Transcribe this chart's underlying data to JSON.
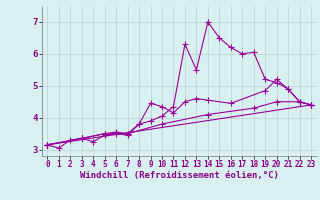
{
  "background_color": "#d8f0f0",
  "grid_color": "#b8d0d0",
  "line_color": "#990099",
  "marker": "+",
  "markersize": 4,
  "linewidth": 0.8,
  "xlabel": "Windchill (Refroidissement éolien,°C)",
  "xlabel_fontsize": 6.5,
  "tick_fontsize": 6,
  "xlim": [
    -0.5,
    23.5
  ],
  "ylim": [
    2.8,
    7.5
  ],
  "yticks": [
    3,
    4,
    5,
    6,
    7
  ],
  "xticks": [
    0,
    1,
    2,
    3,
    4,
    5,
    6,
    7,
    8,
    9,
    10,
    11,
    12,
    13,
    14,
    15,
    16,
    17,
    18,
    19,
    20,
    21,
    22,
    23
  ],
  "series": [
    [
      0,
      3.15,
      1,
      3.05,
      2,
      3.3,
      3,
      3.35,
      4,
      3.25,
      5,
      3.45,
      6,
      3.5,
      7,
      3.45,
      8,
      3.8,
      9,
      3.9,
      10,
      4.05,
      11,
      4.35,
      12,
      6.3,
      13,
      5.5,
      14,
      7.0,
      15,
      6.5,
      16,
      6.2,
      17,
      6.0,
      18,
      6.05,
      19,
      5.2,
      20,
      5.1,
      21,
      4.9,
      22,
      4.5,
      23,
      4.4
    ],
    [
      0,
      3.15,
      3,
      3.35,
      5,
      3.5,
      6,
      3.55,
      7,
      3.5,
      8,
      3.8,
      9,
      4.45,
      10,
      4.35,
      11,
      4.15,
      12,
      4.5,
      13,
      4.6,
      14,
      4.55,
      16,
      4.45,
      19,
      4.85,
      20,
      5.2,
      21,
      4.9,
      22,
      4.5,
      23,
      4.4
    ],
    [
      0,
      3.15,
      3,
      3.35,
      5,
      3.5,
      7,
      3.5,
      10,
      3.8,
      14,
      4.1,
      18,
      4.3,
      20,
      4.5,
      22,
      4.5,
      23,
      4.4
    ],
    [
      0,
      3.15,
      23,
      4.4
    ]
  ]
}
